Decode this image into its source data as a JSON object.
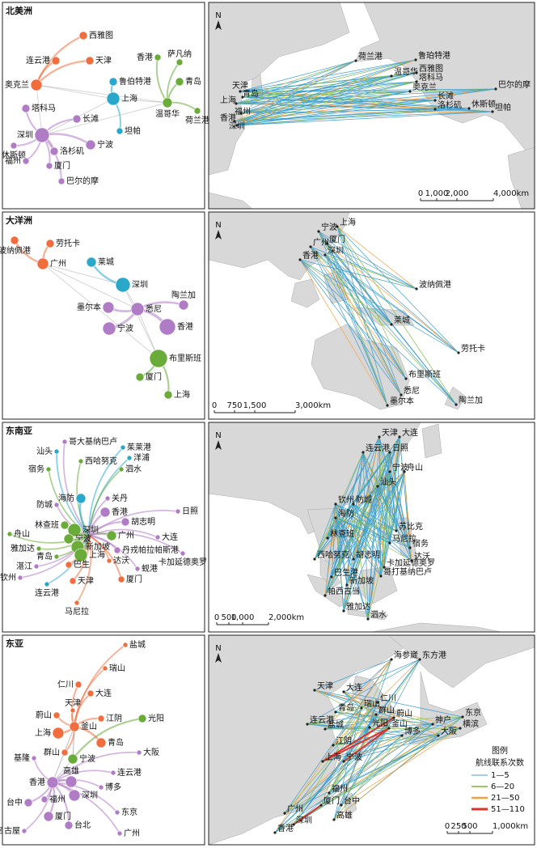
{
  "panels": [
    {
      "region": "北美洲",
      "north": "N",
      "network": [
        "西雅图",
        "连云港",
        "天津",
        "香港",
        "萨凡纳",
        "奥克兰",
        "鲁伯特港",
        "青岛",
        "上海",
        "塔科马",
        "温哥华",
        "荷兰港",
        "长滩",
        "坦帕",
        "深圳",
        "宁波",
        "休斯顿",
        "洛杉矶",
        "福州",
        "厦门",
        "巴尔的摩"
      ],
      "map": [
        "荷兰港",
        "鲁珀特港",
        "西雅图",
        "温哥华",
        "塔科马",
        "奥克兰",
        "长滩",
        "洛杉矶",
        "休斯顿",
        "坦帕",
        "巴尔的摩",
        "天津",
        "青岛",
        "上海",
        "福州",
        "香港",
        "深圳"
      ],
      "scale": [
        "0",
        "1,000",
        "2,000",
        "4,000km"
      ]
    },
    {
      "region": "大洋洲",
      "north": "N",
      "network": [
        "波纳佩港",
        "劳托卡",
        "广州",
        "莱城",
        "深圳",
        "墨尔本",
        "悉尼",
        "陶兰加",
        "宁波",
        "香港",
        "布里斯班",
        "厦门",
        "上海"
      ],
      "map": [
        "上海",
        "宁波",
        "厦门",
        "广州",
        "深圳",
        "香港",
        "波纳佩港",
        "莱城",
        "劳托卡",
        "布里斯班",
        "悉尼",
        "墨尔本",
        "陶兰加"
      ],
      "scale": [
        "0",
        "750",
        "1,500",
        "3,000km"
      ]
    },
    {
      "region": "东南亚",
      "north": "N",
      "network": [
        "哥大基纳巴卢",
        "汕头",
        "西哈努克",
        "茱莱港",
        "洋浦",
        "宿务",
        "泗水",
        "关丹",
        "海防",
        "防城",
        "香港",
        "胡志明",
        "日照",
        "林查班",
        "深圳",
        "广州",
        "宁波",
        "大连",
        "舟山",
        "新加坡",
        "丹戎帕拉帕斯港",
        "雅加达",
        "卡加延德奥罗",
        "青岛",
        "上海",
        "巴生",
        "达沃",
        "湛江",
        "蚬港",
        "钦州",
        "天津",
        "厦门",
        "连云港",
        "马尼拉"
      ],
      "map": [
        "天津",
        "大连",
        "连云港",
        "日照",
        "宁波",
        "舟山",
        "汕头",
        "钦州",
        "防城",
        "海防",
        "林查班",
        "西哈努克",
        "胡志明",
        "巴生港",
        "新加坡",
        "帕西古当",
        "雅加达",
        "泗水",
        "苏比克",
        "马尼拉",
        "宿务",
        "达沃",
        "卡加延德奥罗",
        "哥打基纳巴卢"
      ],
      "scale": [
        "0",
        "500",
        "1,000",
        "2,000km"
      ]
    },
    {
      "region": "东亚",
      "north": "N",
      "network": [
        "盐城",
        "瑞山",
        "仁川",
        "大连",
        "蔚山",
        "天津",
        "江阴",
        "光阳",
        "釜山",
        "上海",
        "青岛",
        "大阪",
        "基隆",
        "群山",
        "宁波",
        "连云港",
        "香港",
        "高雄",
        "博多",
        "深圳",
        "台中",
        "福州",
        "东京",
        "厦门",
        "台北",
        "名古屋",
        "广州"
      ],
      "map": [
        "海参崴",
        "东方港",
        "天津",
        "大连",
        "仁川",
        "瑞山",
        "青岛",
        "群山",
        "蔚山",
        "连云港",
        "盐城",
        "光阳",
        "釜山",
        "博多",
        "神户",
        "东京",
        "横滨",
        "大阪",
        "江阴",
        "上海",
        "宁波",
        "福州",
        "厦门",
        "台中",
        "高雄",
        "广州",
        "深圳",
        "香港"
      ],
      "scale": [
        "0",
        "250",
        "500",
        "1,000km"
      ]
    }
  ],
  "legend": {
    "title": "图例",
    "subtitle": "航线联系次数",
    "items": [
      "1—5",
      "6—20",
      "21—50",
      "51—110"
    ]
  }
}
